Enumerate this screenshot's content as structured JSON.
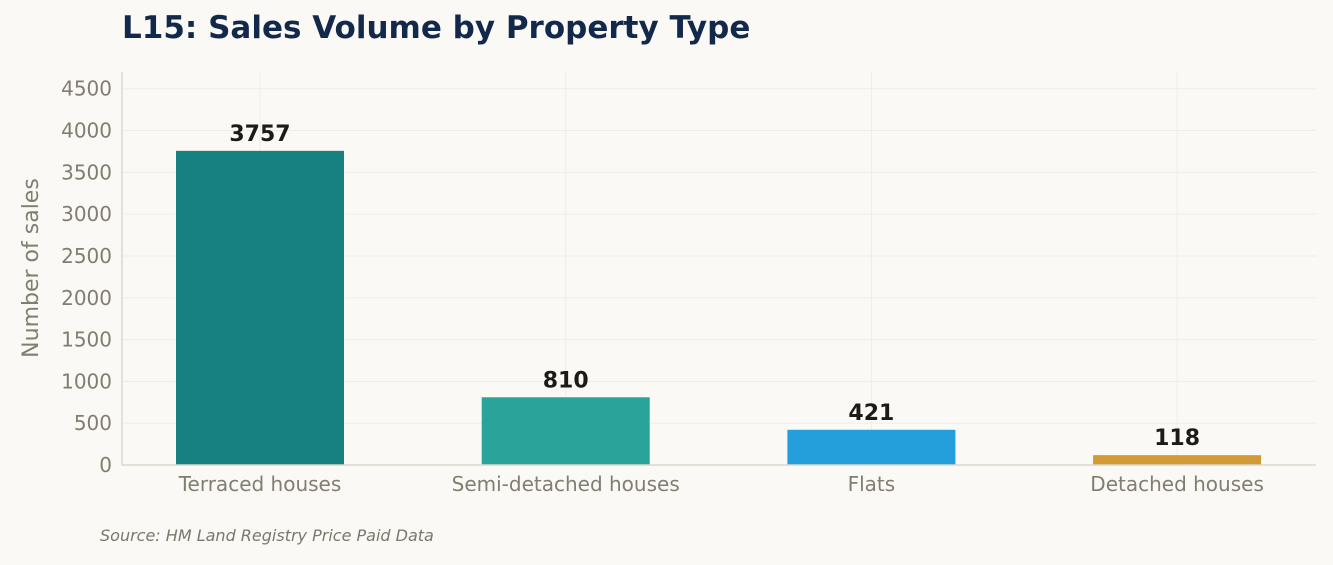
{
  "chart_data": {
    "type": "bar",
    "title": "L15: Sales Volume by Property Type",
    "xlabel": "",
    "ylabel": "Number of sales",
    "categories": [
      "Terraced houses",
      "Semi-detached houses",
      "Flats",
      "Detached houses"
    ],
    "values": [
      3757,
      810,
      421,
      118
    ],
    "data_labels": [
      "3757",
      "810",
      "421",
      "118"
    ],
    "colors": [
      "#168180",
      "#2aa39a",
      "#249fdb",
      "#d39b36"
    ],
    "ylim": [
      0,
      4700
    ],
    "yticks": [
      0,
      500,
      1000,
      1500,
      2000,
      2500,
      3000,
      3500,
      4000,
      4500
    ],
    "grid": true,
    "source": "Source: HM Land Registry Price Paid Data"
  }
}
